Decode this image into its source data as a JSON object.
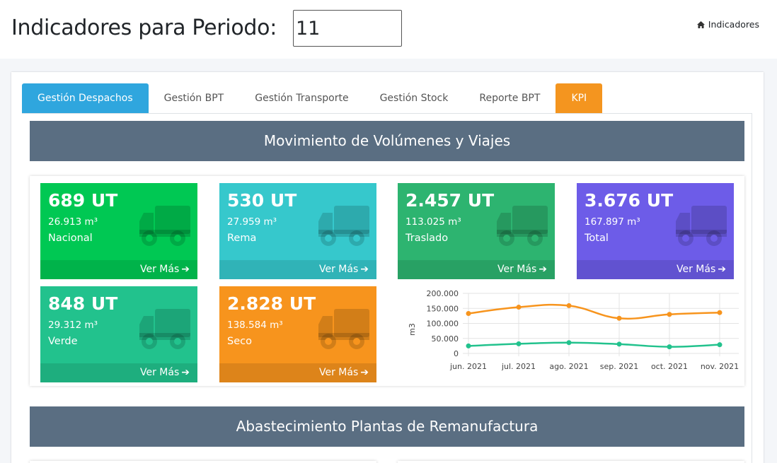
{
  "header": {
    "title": "Indicadores para Periodo:",
    "period_value": "11",
    "breadcrumb": "Indicadores",
    "breadcrumb_icon": "home-icon"
  },
  "tabs": [
    {
      "label": "Gestión Despachos",
      "state": "active"
    },
    {
      "label": "Gestión BPT"
    },
    {
      "label": "Gestión Transporte"
    },
    {
      "label": "Gestión Stock"
    },
    {
      "label": "Reporte BPT"
    },
    {
      "label": "KPI",
      "state": "highlight"
    }
  ],
  "sections": {
    "movimiento": "Movimiento de Volúmenes y Viajes",
    "abastecimiento": "Abastecimiento Plantas de Remanufactura"
  },
  "boxes": [
    {
      "main": "689 UT",
      "vol": "26.913 m³",
      "label": "Nacional",
      "footer": "Ver Más",
      "color": "#00c853"
    },
    {
      "main": "530 UT",
      "vol": "27.959 m³",
      "label": "Rema",
      "footer": "Ver Más",
      "color": "#36c8cc"
    },
    {
      "main": "2.457 UT",
      "vol": "113.025 m³",
      "label": "Traslado",
      "footer": "Ver Más",
      "color": "#2db470"
    },
    {
      "main": "3.676 UT",
      "vol": "167.897 m³",
      "label": "Total",
      "footer": "Ver Más",
      "color": "#6d5ce8"
    },
    {
      "main": "848 UT",
      "vol": "29.312 m³",
      "label": "Verde",
      "footer": "Ver Más",
      "color": "#22c28d"
    },
    {
      "main": "2.828 UT",
      "vol": "138.584 m³",
      "label": "Seco",
      "footer": "Ver Más",
      "color": "#f7941d"
    }
  ],
  "chart_data": {
    "type": "line",
    "x": [
      "jun. 2021",
      "jul. 2021",
      "ago. 2021",
      "sep. 2021",
      "oct. 2021",
      "nov. 2021"
    ],
    "ylabel": "m3",
    "ylim": [
      0,
      200000
    ],
    "yticks": [
      "200.000",
      "150.000",
      "100.000",
      "50.000",
      "0"
    ],
    "grid": true,
    "series": [
      {
        "values": [
          133000,
          154000,
          159000,
          117000,
          130000,
          136000
        ],
        "color": "#f7941d"
      },
      {
        "values": [
          25000,
          32000,
          36000,
          31000,
          22000,
          29000
        ],
        "color": "#22c28d"
      }
    ]
  }
}
